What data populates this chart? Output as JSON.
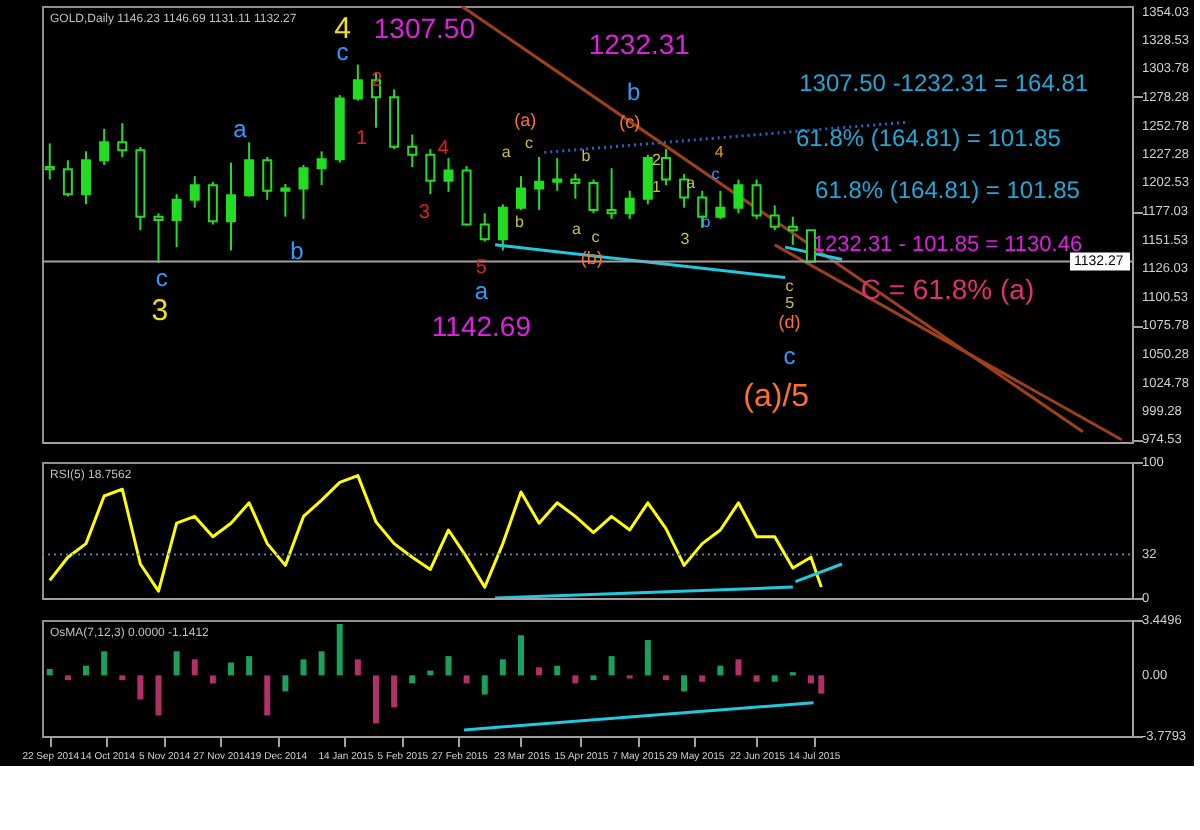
{
  "chart_data": [
    {
      "type": "candlestick",
      "title": "GOLD,Daily  1146.23 1146.69 1131.11 1132.27",
      "color": "#22dd22",
      "tick_labels": "y",
      "x": [
        "2014-09-22",
        "2014-09-29",
        "2014-10-06",
        "2014-10-13",
        "2014-10-20",
        "2014-10-27",
        "2014-11-03",
        "2014-11-10",
        "2014-11-17",
        "2014-11-24",
        "2014-12-01",
        "2014-12-08",
        "2014-12-15",
        "2014-12-22",
        "2014-12-29",
        "2015-01-05",
        "2015-01-12",
        "2015-01-19",
        "2015-01-26",
        "2015-02-02",
        "2015-02-09",
        "2015-02-16",
        "2015-02-23",
        "2015-03-02",
        "2015-03-09",
        "2015-03-16",
        "2015-03-23",
        "2015-03-30",
        "2015-04-06",
        "2015-04-13",
        "2015-04-20",
        "2015-04-27",
        "2015-05-04",
        "2015-05-11",
        "2015-05-18",
        "2015-05-25",
        "2015-06-01",
        "2015-06-08",
        "2015-06-15",
        "2015-06-22",
        "2015-06-29",
        "2015-07-06",
        "2015-07-13"
      ],
      "ohlc": [
        [
          1216,
          1237,
          1205,
          1214
        ],
        [
          1214,
          1222,
          1190,
          1192
        ],
        [
          1192,
          1230,
          1183,
          1222
        ],
        [
          1222,
          1250,
          1218,
          1238
        ],
        [
          1238,
          1255,
          1225,
          1231
        ],
        [
          1231,
          1234,
          1160,
          1172
        ],
        [
          1172,
          1175,
          1131,
          1169
        ],
        [
          1169,
          1192,
          1145,
          1187
        ],
        [
          1187,
          1208,
          1180,
          1200
        ],
        [
          1200,
          1203,
          1165,
          1168
        ],
        [
          1168,
          1220,
          1142,
          1191
        ],
        [
          1191,
          1238,
          1190,
          1222
        ],
        [
          1222,
          1225,
          1187,
          1195
        ],
        [
          1195,
          1201,
          1172,
          1197
        ],
        [
          1197,
          1218,
          1170,
          1215
        ],
        [
          1215,
          1230,
          1200,
          1223
        ],
        [
          1223,
          1280,
          1220,
          1277
        ],
        [
          1277,
          1307,
          1275,
          1293
        ],
        [
          1293,
          1300,
          1251,
          1278
        ],
        [
          1278,
          1285,
          1232,
          1234
        ],
        [
          1234,
          1245,
          1216,
          1227
        ],
        [
          1227,
          1232,
          1192,
          1204
        ],
        [
          1204,
          1224,
          1194,
          1213
        ],
        [
          1213,
          1217,
          1164,
          1165
        ],
        [
          1165,
          1175,
          1150,
          1152
        ],
        [
          1152,
          1183,
          1142,
          1180
        ],
        [
          1180,
          1208,
          1178,
          1197
        ],
        [
          1197,
          1225,
          1178,
          1203
        ],
        [
          1203,
          1224,
          1195,
          1205
        ],
        [
          1205,
          1210,
          1188,
          1202
        ],
        [
          1202,
          1205,
          1175,
          1178
        ],
        [
          1178,
          1215,
          1170,
          1175
        ],
        [
          1175,
          1195,
          1170,
          1188
        ],
        [
          1188,
          1227,
          1183,
          1224
        ],
        [
          1224,
          1232,
          1200,
          1205
        ],
        [
          1205,
          1210,
          1180,
          1189
        ],
        [
          1189,
          1195,
          1162,
          1172
        ],
        [
          1172,
          1195,
          1170,
          1180
        ],
        [
          1180,
          1205,
          1175,
          1200
        ],
        [
          1200,
          1205,
          1170,
          1173
        ],
        [
          1173,
          1182,
          1160,
          1163
        ],
        [
          1163,
          1172,
          1147,
          1160
        ],
        [
          1160,
          1160,
          1131,
          1132
        ]
      ],
      "xlim": [
        "2014-09-19",
        "2015-11-14"
      ],
      "ylim": [
        972,
        1359
      ],
      "yticks": [
        1354.03,
        1328.53,
        1303.78,
        1278.28,
        1252.78,
        1227.28,
        1202.53,
        1177.03,
        1151.53,
        1126.03,
        1100.53,
        1075.78,
        1050.28,
        1024.78,
        999.28,
        974.53
      ],
      "series": [
        {
          "type": "line",
          "x": [
            "2015-02-28",
            "2015-10-26"
          ],
          "values": [
            1359,
            981
          ],
          "color": "#a0401a",
          "line_style": "solid"
        },
        {
          "type": "line",
          "x": [
            "2015-06-29",
            "2015-11-10"
          ],
          "values": [
            1147,
            974
          ],
          "color": "#a0401a",
          "line_style": "solid"
        },
        {
          "type": "line",
          "x": [
            "2015-04-01",
            "2015-08-20"
          ],
          "values": [
            1229,
            1256
          ],
          "color": "#3060c0",
          "line_style": "dotted"
        },
        {
          "type": "line",
          "x": [
            "2015-03-13",
            "2015-07-03"
          ],
          "values": [
            1147,
            1118
          ],
          "color": "#20c8e0",
          "line_style": "solid"
        },
        {
          "type": "line",
          "x": [
            "2015-07-03",
            "2015-07-25"
          ],
          "values": [
            1145,
            1134
          ],
          "color": "#20c8e0",
          "line_style": "solid"
        }
      ],
      "ref_lines": [
        {
          "axis": "y",
          "value": 1132.27,
          "label": "1132.27",
          "color": "#a0a0a0"
        }
      ],
      "annotations": [
        "4",
        "c",
        "1307.50",
        "2",
        "1",
        "4",
        "3",
        "5",
        "a",
        "1142.69",
        "a",
        "b",
        "c",
        "3",
        "1232.31",
        "b",
        "(c)",
        "(a)",
        "(b)",
        "a",
        "c",
        "b",
        "a",
        "c",
        "b",
        "2",
        "1",
        "3",
        "b",
        "4",
        "c",
        "a",
        "1307.50 -1232.31 = 164.81",
        "61.8% (164.81) = 101.85",
        "61.8% (164.81) = 101.85",
        "1232.31 - 101.85 = 1130.46",
        "C = 61.8% (a)",
        "c",
        "5",
        "(d)",
        "c",
        "(a)/5"
      ]
    },
    {
      "type": "line",
      "title": "RSI(5) 18.7562",
      "tick_labels": "y",
      "x": [
        "2014-09-22",
        "2014-09-29",
        "2014-10-06",
        "2014-10-13",
        "2014-10-20",
        "2014-10-27",
        "2014-11-03",
        "2014-11-10",
        "2014-11-17",
        "2014-11-24",
        "2014-12-01",
        "2014-12-08",
        "2014-12-15",
        "2014-12-22",
        "2014-12-29",
        "2015-01-05",
        "2015-01-12",
        "2015-01-19",
        "2015-01-26",
        "2015-02-02",
        "2015-02-09",
        "2015-02-16",
        "2015-02-23",
        "2015-03-02",
        "2015-03-09",
        "2015-03-16",
        "2015-03-23",
        "2015-03-30",
        "2015-04-06",
        "2015-04-13",
        "2015-04-20",
        "2015-04-27",
        "2015-05-04",
        "2015-05-11",
        "2015-05-18",
        "2015-05-25",
        "2015-06-01",
        "2015-06-08",
        "2015-06-15",
        "2015-06-22",
        "2015-06-29",
        "2015-07-06",
        "2015-07-13",
        "2015-07-17"
      ],
      "xlim": [
        "2014-09-19",
        "2015-11-14"
      ],
      "ylim": [
        0,
        100
      ],
      "yticks": [
        100,
        32,
        0
      ],
      "series": [
        {
          "color": "#ffff00",
          "values": [
            13,
            30,
            40,
            75,
            80,
            25,
            5,
            55,
            60,
            45,
            55,
            70,
            40,
            24,
            60,
            72,
            85,
            90,
            56,
            40,
            30,
            21,
            50,
            30,
            8,
            40,
            78,
            55,
            70,
            60,
            48,
            60,
            50,
            70,
            51,
            24,
            40,
            50,
            70,
            45,
            45,
            22,
            30,
            8
          ]
        },
        {
          "type": "line",
          "x": [
            "2015-03-13",
            "2015-07-06"
          ],
          "values": [
            0,
            8
          ],
          "color": "#20c8e0"
        },
        {
          "type": "line",
          "x": [
            "2015-07-07",
            "2015-07-25"
          ],
          "values": [
            12,
            25
          ],
          "color": "#20c8e0"
        }
      ],
      "ref_lines": [
        {
          "axis": "y",
          "value": 32,
          "color": "#6080a0",
          "line_style": "dotted"
        }
      ]
    },
    {
      "type": "bar",
      "title": "OsMA(7,12,3) 0.0000 -1.1412",
      "x": [
        "2014-09-22",
        "2014-09-29",
        "2014-10-06",
        "2014-10-13",
        "2014-10-20",
        "2014-10-27",
        "2014-11-03",
        "2014-11-10",
        "2014-11-17",
        "2014-11-24",
        "2014-12-01",
        "2014-12-08",
        "2014-12-15",
        "2014-12-22",
        "2014-12-29",
        "2015-01-05",
        "2015-01-12",
        "2015-01-19",
        "2015-01-26",
        "2015-02-02",
        "2015-02-09",
        "2015-02-16",
        "2015-02-23",
        "2015-03-02",
        "2015-03-09",
        "2015-03-16",
        "2015-03-23",
        "2015-03-30",
        "2015-04-06",
        "2015-04-13",
        "2015-04-20",
        "2015-04-27",
        "2015-05-04",
        "2015-05-11",
        "2015-05-18",
        "2015-05-25",
        "2015-06-01",
        "2015-06-08",
        "2015-06-15",
        "2015-06-22",
        "2015-06-29",
        "2015-07-06",
        "2015-07-13",
        "2015-07-17"
      ],
      "values": [
        0.4,
        -0.3,
        0.6,
        1.5,
        -0.3,
        -1.5,
        -2.5,
        1.5,
        1.0,
        -0.5,
        0.8,
        1.2,
        -2.5,
        -1.0,
        1.0,
        1.5,
        3.2,
        1.0,
        -3.0,
        -2.0,
        -0.5,
        0.3,
        1.2,
        -0.5,
        -1.2,
        1.0,
        2.5,
        0.5,
        0.6,
        -0.5,
        -0.3,
        1.2,
        -0.2,
        2.2,
        -0.3,
        -1.0,
        -0.4,
        0.6,
        1.0,
        -0.4,
        -0.4,
        0.2,
        -0.5,
        -1.1412
      ],
      "colors": [
        "#1aa05a",
        "#b03068",
        "#1aa05a",
        "#1aa05a",
        "#b03068",
        "#b03068",
        "#b03068",
        "#1aa05a",
        "#b03068",
        "#b03068",
        "#1aa05a",
        "#1aa05a",
        "#b03068",
        "#1aa05a",
        "#1aa05a",
        "#1aa05a",
        "#1aa05a",
        "#b03068",
        "#b03068",
        "#b03068",
        "#1aa05a",
        "#1aa05a",
        "#1aa05a",
        "#b03068",
        "#1aa05a",
        "#1aa05a",
        "#1aa05a",
        "#b03068",
        "#1aa05a",
        "#b03068",
        "#1aa05a",
        "#1aa05a",
        "#b03068",
        "#1aa05a",
        "#b03068",
        "#1aa05a",
        "#b03068",
        "#1aa05a",
        "#b03068",
        "#b03068",
        "#1aa05a",
        "#1aa05a",
        "#b03068",
        "#b03068"
      ],
      "xlim": [
        "2014-09-19",
        "2015-11-14"
      ],
      "ylim": [
        -3.7793,
        3.4496
      ],
      "yticks": [
        3.4496,
        {
          "value": 0,
          "label": "0.00"
        },
        -3.7793
      ],
      "xticks": [
        {
          "value": "2014-09-22",
          "label": "22 Sep 2014"
        },
        {
          "value": "2014-10-14",
          "label": "14 Oct 2014"
        },
        {
          "value": "2014-11-05",
          "label": "5 Nov 2014"
        },
        {
          "value": "2014-11-27",
          "label": "27 Nov 2014"
        },
        {
          "value": "2014-12-19",
          "label": "19 Dec 2014"
        },
        {
          "value": "2015-01-14",
          "label": "14 Jan 2015"
        },
        {
          "value": "2015-02-05",
          "label": "5 Feb 2015"
        },
        {
          "value": "2015-02-27",
          "label": "27 Feb 2015"
        },
        {
          "value": "2015-03-23",
          "label": "23 Mar 2015"
        },
        {
          "value": "2015-04-15",
          "label": "15 Apr 2015"
        },
        {
          "value": "2015-05-07",
          "label": "7 May 2015"
        },
        {
          "value": "2015-05-29",
          "label": "29 May 2015"
        },
        {
          "value": "2015-06-22",
          "label": "22 Jun 2015"
        },
        {
          "value": "2015-07-14",
          "label": "14 Jul 2015"
        }
      ],
      "series": [
        {
          "type": "line",
          "x": [
            "2015-03-01",
            "2015-07-14"
          ],
          "values": [
            -3.4,
            -1.7
          ],
          "color": "#20c8e0"
        }
      ]
    }
  ]
}
